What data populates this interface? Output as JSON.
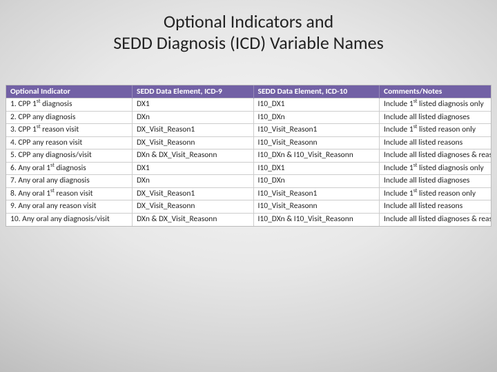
{
  "title_line1": "Optional Indicators and",
  "title_line2": "SEDD Diagnosis (ICD) Variable Names",
  "table": {
    "columns": [
      "Optional Indicator",
      "SEDD Data Element, ICD-9",
      "SEDD Data Element, ICD-10",
      "Comments/Notes"
    ],
    "rows": [
      {
        "c1_pre": "1. CPP 1",
        "c1_sup": "st",
        "c1_post": " diagnosis",
        "c2": "DX1",
        "c3": "I10_DX1",
        "c4_pre": "Include 1",
        "c4_sup": "st",
        "c4_post": " listed diagnosis only"
      },
      {
        "c1_pre": "2. CPP any diagnosis",
        "c1_sup": "",
        "c1_post": "",
        "c2": "DXn",
        "c3": "I10_DXn",
        "c4_pre": "Include all listed diagnoses",
        "c4_sup": "",
        "c4_post": ""
      },
      {
        "c1_pre": "3. CPP 1",
        "c1_sup": "st",
        "c1_post": " reason visit",
        "c2": "DX_Visit_Reason1",
        "c3": "I10_Visit_Reason1",
        "c4_pre": "Include 1",
        "c4_sup": "st",
        "c4_post": " listed reason only"
      },
      {
        "c1_pre": "4. CPP any reason visit",
        "c1_sup": "",
        "c1_post": "",
        "c2": "DX_Visit_Reasonn",
        "c3": "I10_Visit_Reasonn",
        "c4_pre": "Include all listed reasons",
        "c4_sup": "",
        "c4_post": ""
      },
      {
        "c1_pre": "5. CPP any diagnosis/visit",
        "c1_sup": "",
        "c1_post": "",
        "c2": "DXn & DX_Visit_Reasonn",
        "c3": "I10_DXn & I10_Visit_Reasonn",
        "c4_pre": "Include all listed diagnoses & reasons",
        "c4_sup": "",
        "c4_post": ""
      },
      {
        "c1_pre": "6. Any oral 1",
        "c1_sup": "st",
        "c1_post": " diagnosis",
        "c2": "DX1",
        "c3": "I10_DX1",
        "c4_pre": "Include 1",
        "c4_sup": "st",
        "c4_post": " listed diagnosis only"
      },
      {
        "c1_pre": "7. Any oral any diagnosis",
        "c1_sup": "",
        "c1_post": "",
        "c2": "DXn",
        "c3": "I10_DXn",
        "c4_pre": "Include all listed diagnoses",
        "c4_sup": "",
        "c4_post": ""
      },
      {
        "c1_pre": "8. Any oral 1",
        "c1_sup": "st",
        "c1_post": " reason visit",
        "c2": "DX_Visit_Reason1",
        "c3": "I10_Visit_Reason1",
        "c4_pre": "Include 1",
        "c4_sup": "st",
        "c4_post": " listed reason only"
      },
      {
        "c1_pre": "9. Any oral any reason visit",
        "c1_sup": "",
        "c1_post": "",
        "c2": "DX_Visit_Reasonn",
        "c3": "I10_Visit_Reasonn",
        "c4_pre": "Include all listed reasons",
        "c4_sup": "",
        "c4_post": ""
      },
      {
        "c1_pre": "10. Any oral any diagnosis/visit",
        "c1_sup": "",
        "c1_post": "",
        "c2": "DXn & DX_Visit_Reasonn",
        "c3": "I10_DXn & I10_Visit_Reasonn",
        "c4_pre": "Include all listed diagnoses & reasons",
        "c4_sup": "",
        "c4_post": ""
      }
    ],
    "header_bg": "#7261a5",
    "header_fg": "#ffffff",
    "cell_border": "#cccccc",
    "font_size_pt": 11.5
  }
}
